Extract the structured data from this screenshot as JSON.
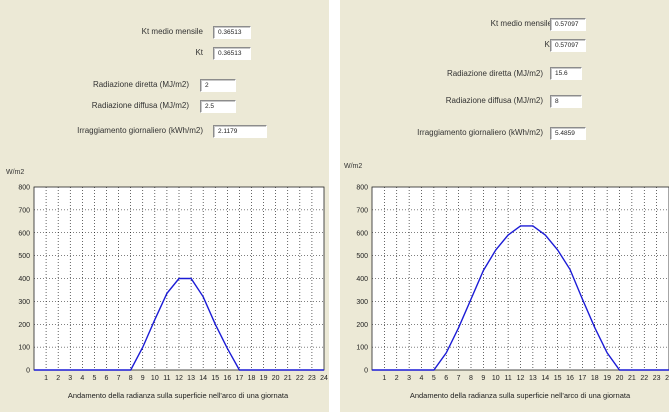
{
  "panels": [
    {
      "fields": [
        {
          "label": "Kt medio mensile",
          "value": "0.36513"
        },
        {
          "label": "Kt",
          "value": "0.36513"
        },
        {
          "label": "Radiazione diretta (MJ/m2)",
          "value": "2"
        },
        {
          "label": "Radiazione diffusa (MJ/m2)",
          "value": "2.5"
        },
        {
          "label": "Irraggiamento giornaliero (kWh/m2)",
          "value": "2.1179"
        }
      ],
      "unit": "W/m2",
      "xlabel": "Andamento della radianza sulla superficie nell'arco di una giornata"
    },
    {
      "fields": [
        {
          "label": "Kt medio mensile",
          "value": "0.57097"
        },
        {
          "label": "Kt",
          "value": "0.57097"
        },
        {
          "label": "Radiazione diretta (MJ/m2)",
          "value": "15.6"
        },
        {
          "label": "Radiazione diffusa (MJ/m2)",
          "value": "8"
        },
        {
          "label": "Irraggiamento giornaliero (kWh/m2)",
          "value": "5.4859"
        }
      ],
      "unit": "W/m2",
      "xlabel": "Andamento della radianza sulla superficie nell'arco di una giornata"
    }
  ],
  "chart_data": [
    {
      "type": "line",
      "title": "",
      "xlabel": "Andamento della radianza sulla superficie nell'arco di una giornata",
      "ylabel": "W/m2",
      "ylim": [
        0,
        800
      ],
      "xlim": [
        0,
        24
      ],
      "xticks": [
        "1",
        "2",
        "3",
        "4",
        "5",
        "6",
        "7",
        "8",
        "9",
        "10",
        "11",
        "12",
        "13",
        "14",
        "15",
        "16",
        "17",
        "18",
        "19",
        "20",
        "21",
        "22",
        "23",
        "24"
      ],
      "yticks": [
        "0",
        "100",
        "200",
        "300",
        "400",
        "500",
        "600",
        "700",
        "800"
      ],
      "grid": true,
      "color": "#1c1cd6",
      "x": [
        0,
        1,
        2,
        3,
        4,
        5,
        6,
        7,
        8,
        9,
        10,
        11,
        12,
        13,
        14,
        15,
        16,
        17,
        18,
        19,
        20,
        21,
        22,
        23,
        24
      ],
      "values": [
        0,
        0,
        0,
        0,
        0,
        0,
        0,
        0,
        0,
        100,
        220,
        335,
        400,
        400,
        320,
        200,
        95,
        0,
        0,
        0,
        0,
        0,
        0,
        0,
        0
      ]
    },
    {
      "type": "line",
      "title": "",
      "xlabel": "Andamento della radianza sulla superficie nell'arco di una giornata",
      "ylabel": "W/m2",
      "ylim": [
        0,
        800
      ],
      "xlim": [
        0,
        24
      ],
      "xticks": [
        "1",
        "2",
        "3",
        "4",
        "5",
        "6",
        "7",
        "8",
        "9",
        "10",
        "11",
        "12",
        "13",
        "14",
        "15",
        "16",
        "17",
        "18",
        "19",
        "20",
        "21",
        "22",
        "23",
        "24"
      ],
      "yticks": [
        "0",
        "100",
        "200",
        "300",
        "400",
        "500",
        "600",
        "700",
        "800"
      ],
      "grid": true,
      "color": "#1c1cd6",
      "x": [
        0,
        1,
        2,
        3,
        4,
        5,
        6,
        7,
        8,
        9,
        10,
        11,
        12,
        13,
        14,
        15,
        16,
        17,
        18,
        19,
        20,
        21,
        22,
        23,
        24
      ],
      "values": [
        0,
        0,
        0,
        0,
        0,
        0,
        75,
        185,
        310,
        435,
        525,
        590,
        630,
        630,
        590,
        525,
        440,
        310,
        185,
        75,
        0,
        0,
        0,
        0,
        0
      ]
    }
  ]
}
